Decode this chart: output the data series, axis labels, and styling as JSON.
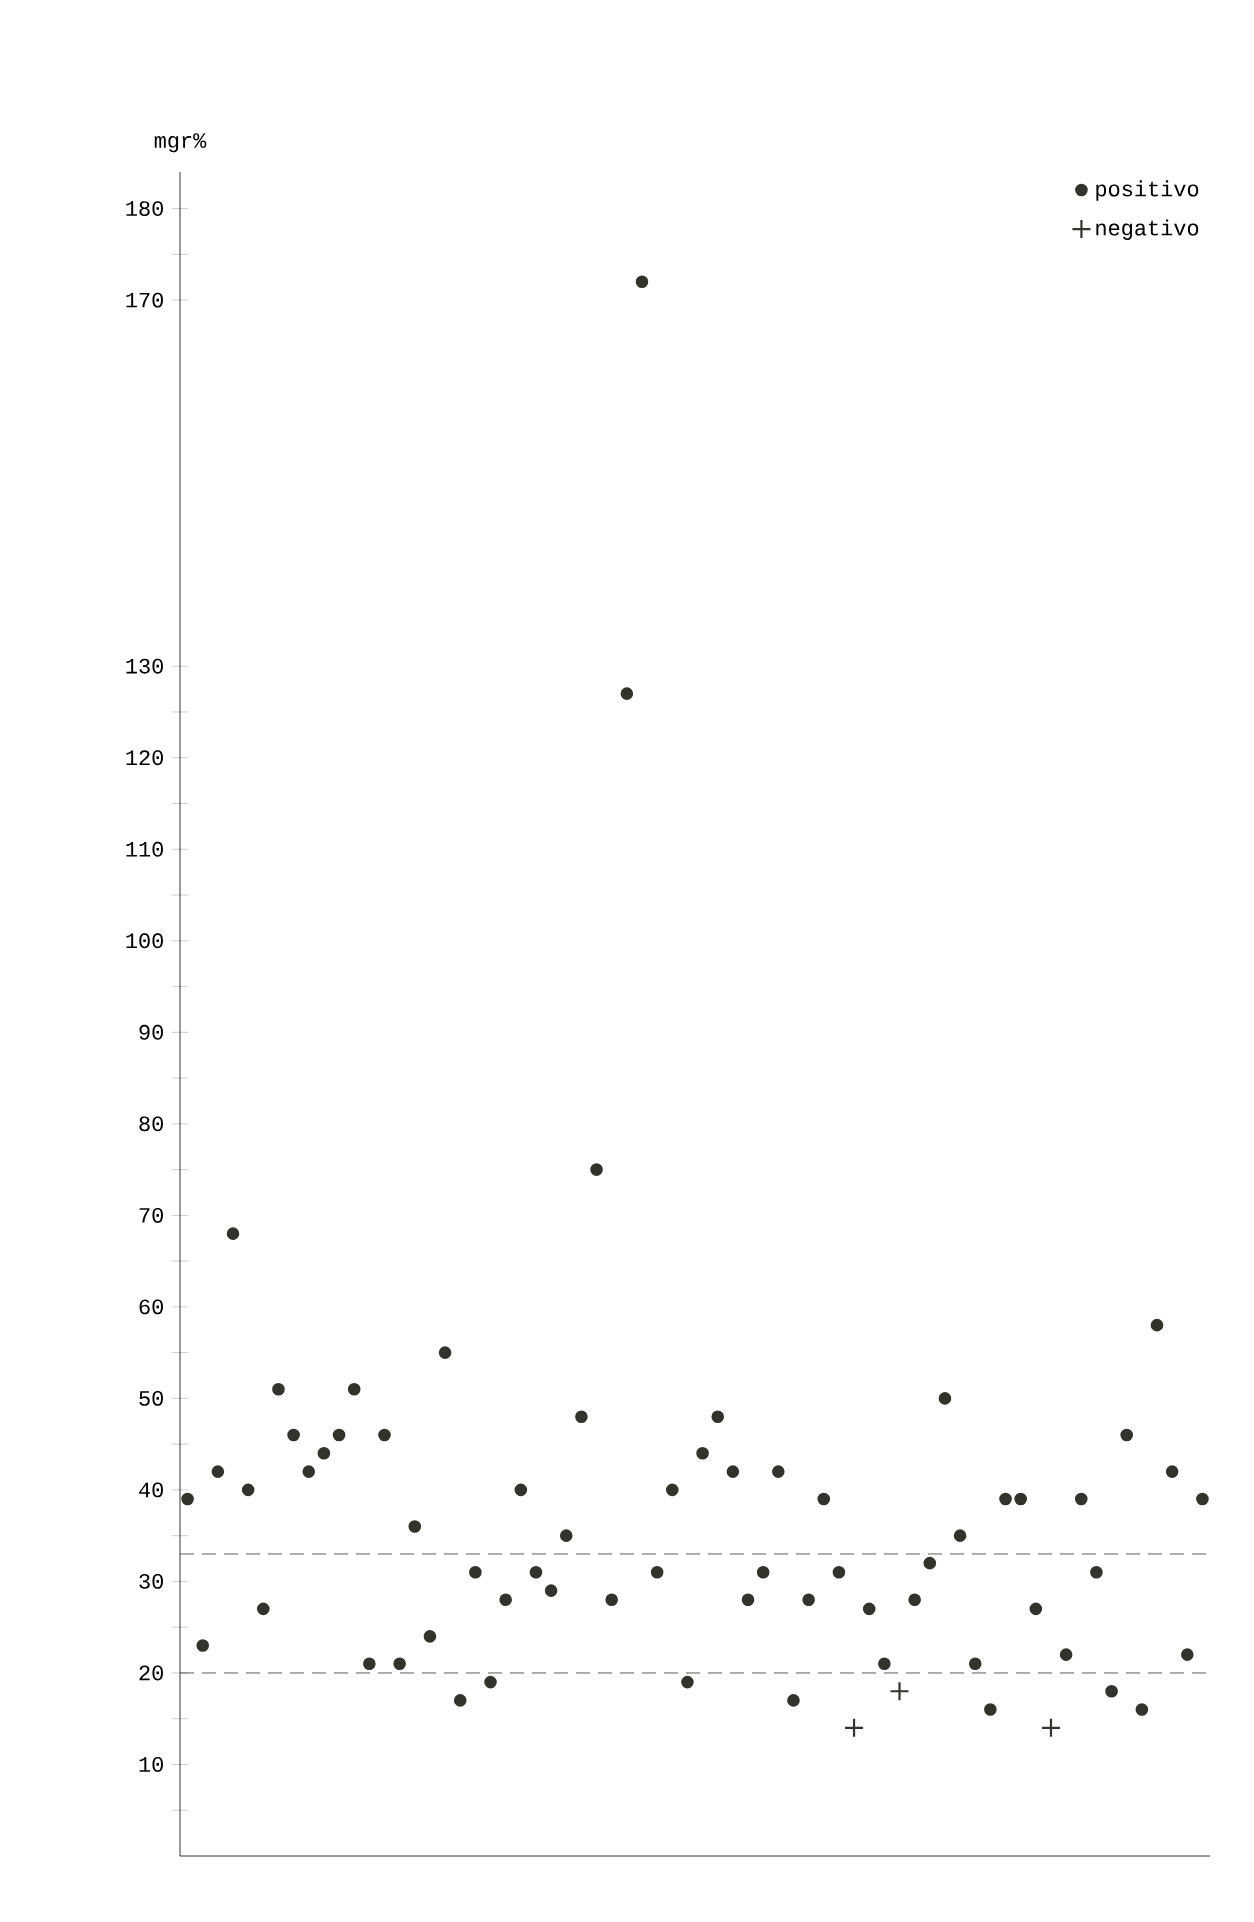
{
  "chart_data": {
    "type": "scatter",
    "ylabel": "mgr%",
    "categories": [
      null,
      null,
      null,
      null,
      null,
      null,
      null,
      null,
      null,
      null,
      null,
      null,
      null,
      null,
      null,
      null,
      null,
      null,
      null,
      null,
      null,
      null,
      null,
      null,
      null,
      null,
      null,
      null,
      null,
      null,
      null,
      null,
      null,
      null,
      null,
      null,
      null,
      null,
      null,
      null,
      null,
      null,
      null,
      null,
      null,
      null,
      null,
      null,
      null,
      null,
      null,
      null,
      null,
      null,
      null,
      null,
      null,
      null,
      null,
      null,
      null,
      null,
      null,
      null,
      null,
      null,
      null,
      null
    ],
    "ylim": [
      0,
      184
    ],
    "yticks": [
      {
        "value": 5,
        "label": null
      },
      10,
      {
        "value": 15,
        "label": null
      },
      20,
      {
        "value": 25,
        "label": null
      },
      30,
      {
        "value": 35,
        "label": null
      },
      40,
      {
        "value": 45,
        "label": null
      },
      50,
      {
        "value": 55,
        "label": null
      },
      60,
      {
        "value": 65,
        "label": null
      },
      70,
      {
        "value": 75,
        "label": null
      },
      80,
      {
        "value": 85,
        "label": null
      },
      90,
      {
        "value": 95,
        "label": null
      },
      100,
      {
        "value": 105,
        "label": null
      },
      110,
      {
        "value": 115,
        "label": null
      },
      120,
      {
        "value": 125,
        "label": null
      },
      130,
      170,
      {
        "value": 175,
        "label": null
      },
      180
    ],
    "tick_labels": "y",
    "legend": "top right",
    "ref_lines": [
      {
        "axis": "y",
        "value": 33,
        "line_style": "dashed"
      },
      {
        "axis": "y",
        "value": 20,
        "line_style": "dashed"
      }
    ],
    "series": [
      {
        "name": "positivo",
        "color": "#33332b",
        "marker": "circle",
        "values": [
          39,
          23,
          42,
          68,
          40,
          27,
          51,
          46,
          42,
          44,
          46,
          51,
          21,
          46,
          21,
          36,
          24,
          55,
          17,
          31,
          19,
          28,
          40,
          31,
          29,
          35,
          48,
          75,
          28,
          127,
          172,
          31,
          40,
          19,
          44,
          48,
          42,
          28,
          31,
          42,
          17,
          28,
          39,
          31,
          null,
          27,
          21,
          null,
          28,
          32,
          50,
          35,
          21,
          16,
          39,
          39,
          27,
          null,
          22,
          39,
          31,
          18,
          46,
          16,
          58,
          42,
          22,
          39
        ]
      },
      {
        "name": "negativo",
        "color": "#33332b",
        "marker": "cross",
        "values": [
          null,
          null,
          null,
          null,
          null,
          null,
          null,
          null,
          null,
          null,
          null,
          null,
          null,
          null,
          null,
          null,
          null,
          null,
          null,
          null,
          null,
          null,
          null,
          null,
          null,
          null,
          null,
          null,
          null,
          null,
          null,
          null,
          null,
          null,
          null,
          null,
          null,
          null,
          null,
          null,
          null,
          null,
          null,
          null,
          14,
          null,
          null,
          18,
          null,
          null,
          null,
          null,
          null,
          null,
          null,
          null,
          null,
          14,
          null,
          null,
          null,
          null,
          null,
          null,
          null,
          null,
          null,
          null
        ]
      }
    ]
  }
}
